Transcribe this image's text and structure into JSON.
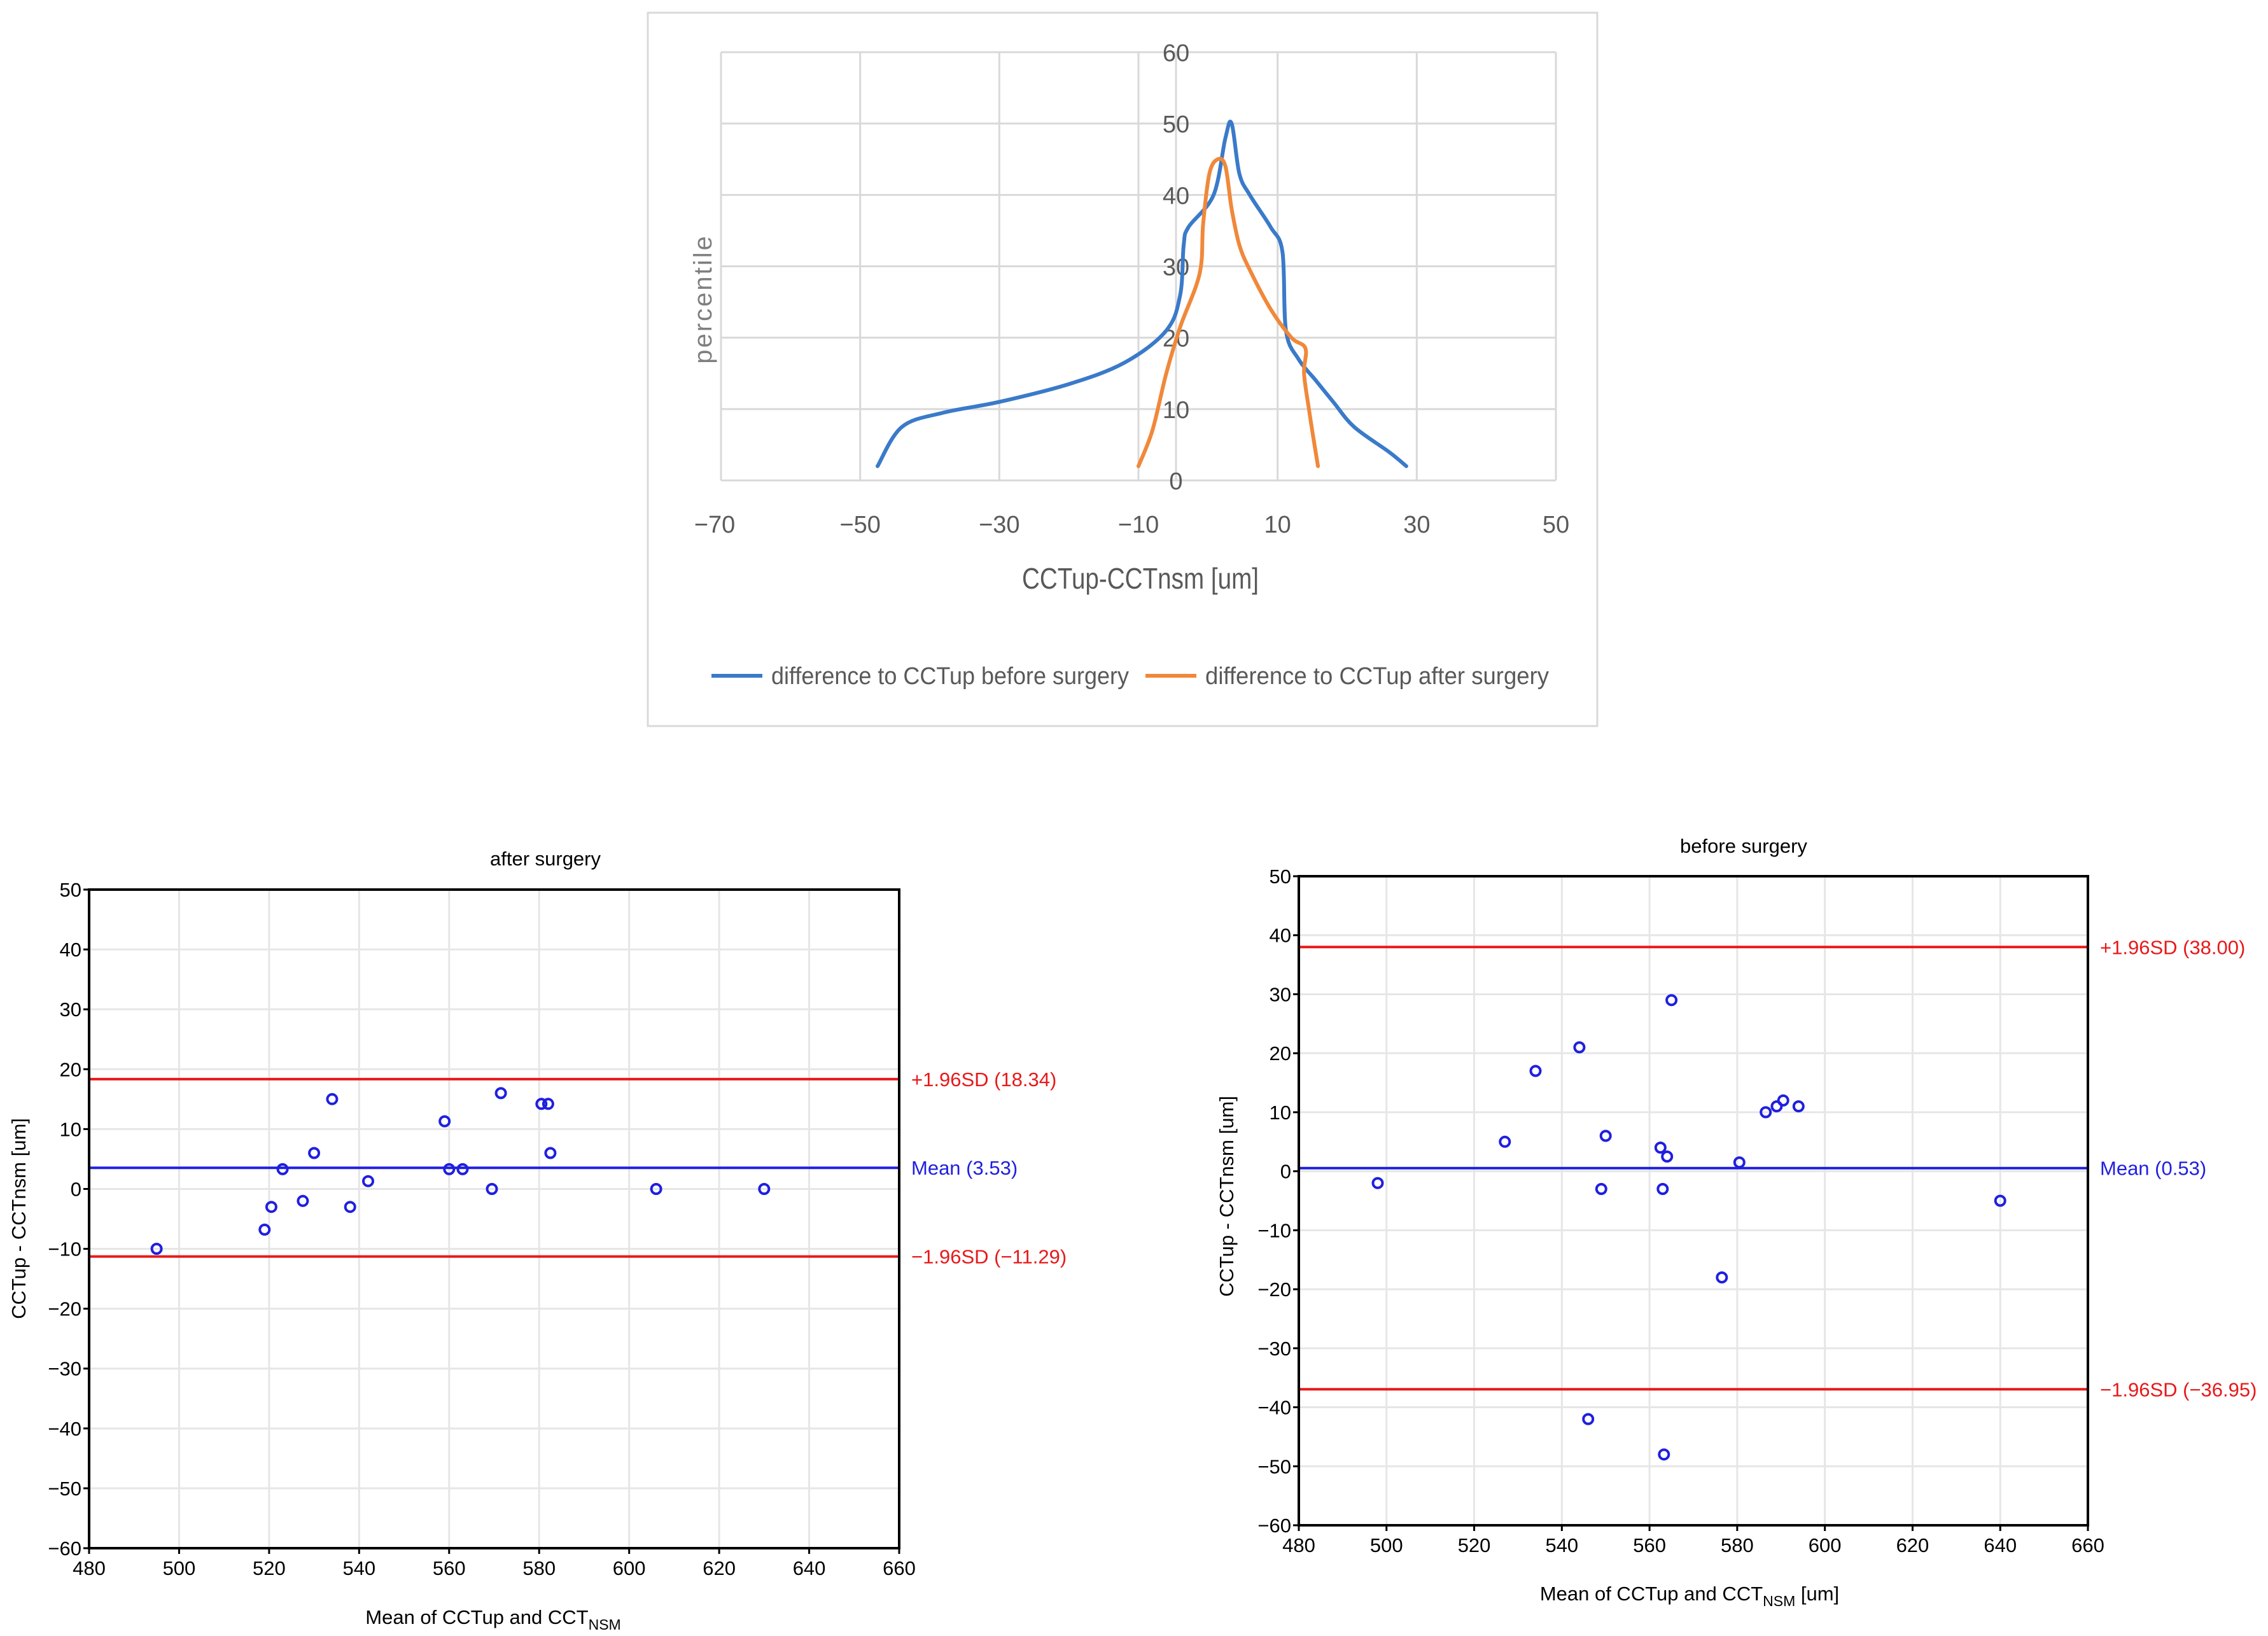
{
  "chart_data": [
    {
      "type": "line",
      "title": "",
      "xlabel": "CCTup-CCTnsm [um]",
      "ylabel": "percentile",
      "xlim": [
        -70,
        50
      ],
      "ylim": [
        0,
        60
      ],
      "x_ticks": [
        "−70",
        "−50",
        "−30",
        "−10",
        "10",
        "30",
        "50"
      ],
      "y_ticks": [
        "0",
        "10",
        "20",
        "30",
        "40",
        "50",
        "60"
      ],
      "legend_position": "bottom",
      "grid": true,
      "series": [
        {
          "name": "difference to CCTup before surgery",
          "color": "#3a7ac9",
          "points": [
            [
              -47.5,
              2
            ],
            [
              -44,
              7.5
            ],
            [
              -38,
              9.5
            ],
            [
              -30,
              11
            ],
            [
              -20,
              13.5
            ],
            [
              -12,
              16.5
            ],
            [
              -6,
              21
            ],
            [
              -4,
              26
            ],
            [
              -3.5,
              33
            ],
            [
              -2.8,
              35.5
            ],
            [
              0.8,
              40
            ],
            [
              2.5,
              48
            ],
            [
              3.4,
              50
            ],
            [
              4.5,
              43
            ],
            [
              6,
              40
            ],
            [
              9,
              35.5
            ],
            [
              10.7,
              32
            ],
            [
              11.2,
              21
            ],
            [
              13,
              17
            ],
            [
              15.5,
              14
            ],
            [
              18,
              11
            ],
            [
              21,
              7.5
            ],
            [
              26,
              4
            ],
            [
              28.5,
              2
            ]
          ]
        },
        {
          "name": "difference to CCTup after surgery",
          "color": "#f0883a",
          "points": [
            [
              -10,
              2
            ],
            [
              -8,
              7
            ],
            [
              -6,
              15
            ],
            [
              -4,
              21.5
            ],
            [
              -1.2,
              29
            ],
            [
              -0.7,
              36
            ],
            [
              0.2,
              43
            ],
            [
              1.4,
              45
            ],
            [
              2.5,
              44
            ],
            [
              3.4,
              38
            ],
            [
              4.5,
              33
            ],
            [
              6,
              29.5
            ],
            [
              9,
              24
            ],
            [
              12,
              20
            ],
            [
              14,
              18.5
            ],
            [
              13.8,
              15
            ],
            [
              14.5,
              10
            ],
            [
              15.3,
              5
            ],
            [
              15.8,
              2
            ]
          ]
        }
      ]
    },
    {
      "type": "scatter",
      "title": "after surgery",
      "xlabel_main": "Mean of CCTup and CCT",
      "xlabel_sub": "NSM",
      "xlabel": "Mean of CCTup and CCTNSM",
      "ylabel": "CCTup - CCTnsm [um]",
      "xlim": [
        480,
        660
      ],
      "ylim": [
        -60,
        50
      ],
      "x_ticks": [
        "480",
        "500",
        "520",
        "540",
        "560",
        "580",
        "600",
        "620",
        "640",
        "660"
      ],
      "y_ticks": [
        "−60",
        "−50",
        "−40",
        "−30",
        "−20",
        "−10",
        "0",
        "10",
        "20",
        "30",
        "40",
        "50"
      ],
      "lines": [
        {
          "label": "+1.96SD (18.34)",
          "value": 18.34,
          "color": "#e8191a"
        },
        {
          "label": "Mean (3.53)",
          "value": 3.53,
          "color": "#1f1fe0"
        },
        {
          "label": "−1.96SD (−11.29)",
          "value": -11.29,
          "color": "#e8191a"
        }
      ],
      "points": [
        [
          495,
          -10
        ],
        [
          519,
          -6.8
        ],
        [
          520.5,
          -3
        ],
        [
          523,
          3.3
        ],
        [
          527.5,
          -2
        ],
        [
          530,
          6
        ],
        [
          534,
          15
        ],
        [
          538,
          -3
        ],
        [
          542,
          1.3
        ],
        [
          559,
          11.3
        ],
        [
          560,
          3.3
        ],
        [
          563,
          3.3
        ],
        [
          569.5,
          0
        ],
        [
          571.5,
          16
        ],
        [
          580.5,
          14.2
        ],
        [
          582,
          14.2
        ],
        [
          582.5,
          6
        ],
        [
          606,
          0
        ],
        [
          630,
          0
        ]
      ]
    },
    {
      "type": "scatter",
      "title": "before surgery",
      "xlabel_main": "Mean of CCTup and CCT",
      "xlabel_sub": "NSM",
      "xlabel_unit": " [um]",
      "xlabel": "Mean of CCTup and CCTNSM [um]",
      "ylabel": "CCTup - CCTnsm [um]",
      "xlim": [
        480,
        660
      ],
      "ylim": [
        -60,
        50
      ],
      "x_ticks": [
        "480",
        "500",
        "520",
        "540",
        "560",
        "580",
        "600",
        "620",
        "640",
        "660"
      ],
      "y_ticks": [
        "−60",
        "−50",
        "−40",
        "−30",
        "−20",
        "−10",
        "0",
        "10",
        "20",
        "30",
        "40",
        "50"
      ],
      "lines": [
        {
          "label": "+1.96SD (38.00)",
          "value": 38.0,
          "color": "#e8191a"
        },
        {
          "label": "Mean (0.53)",
          "value": 0.53,
          "color": "#1f1fe0"
        },
        {
          "label": "−1.96SD (−36.95)",
          "value": -36.95,
          "color": "#e8191a"
        }
      ],
      "points": [
        [
          498,
          -2
        ],
        [
          527,
          5
        ],
        [
          534,
          17
        ],
        [
          544,
          21
        ],
        [
          546,
          -42
        ],
        [
          549,
          -3
        ],
        [
          550,
          6
        ],
        [
          562.5,
          4
        ],
        [
          563,
          -3
        ],
        [
          563.3,
          -48
        ],
        [
          564,
          2.5
        ],
        [
          565,
          29
        ],
        [
          576.5,
          -18
        ],
        [
          580.5,
          1.5
        ],
        [
          586.5,
          10
        ],
        [
          589,
          11
        ],
        [
          590.5,
          12
        ],
        [
          594,
          11
        ],
        [
          640,
          -5
        ]
      ]
    }
  ]
}
